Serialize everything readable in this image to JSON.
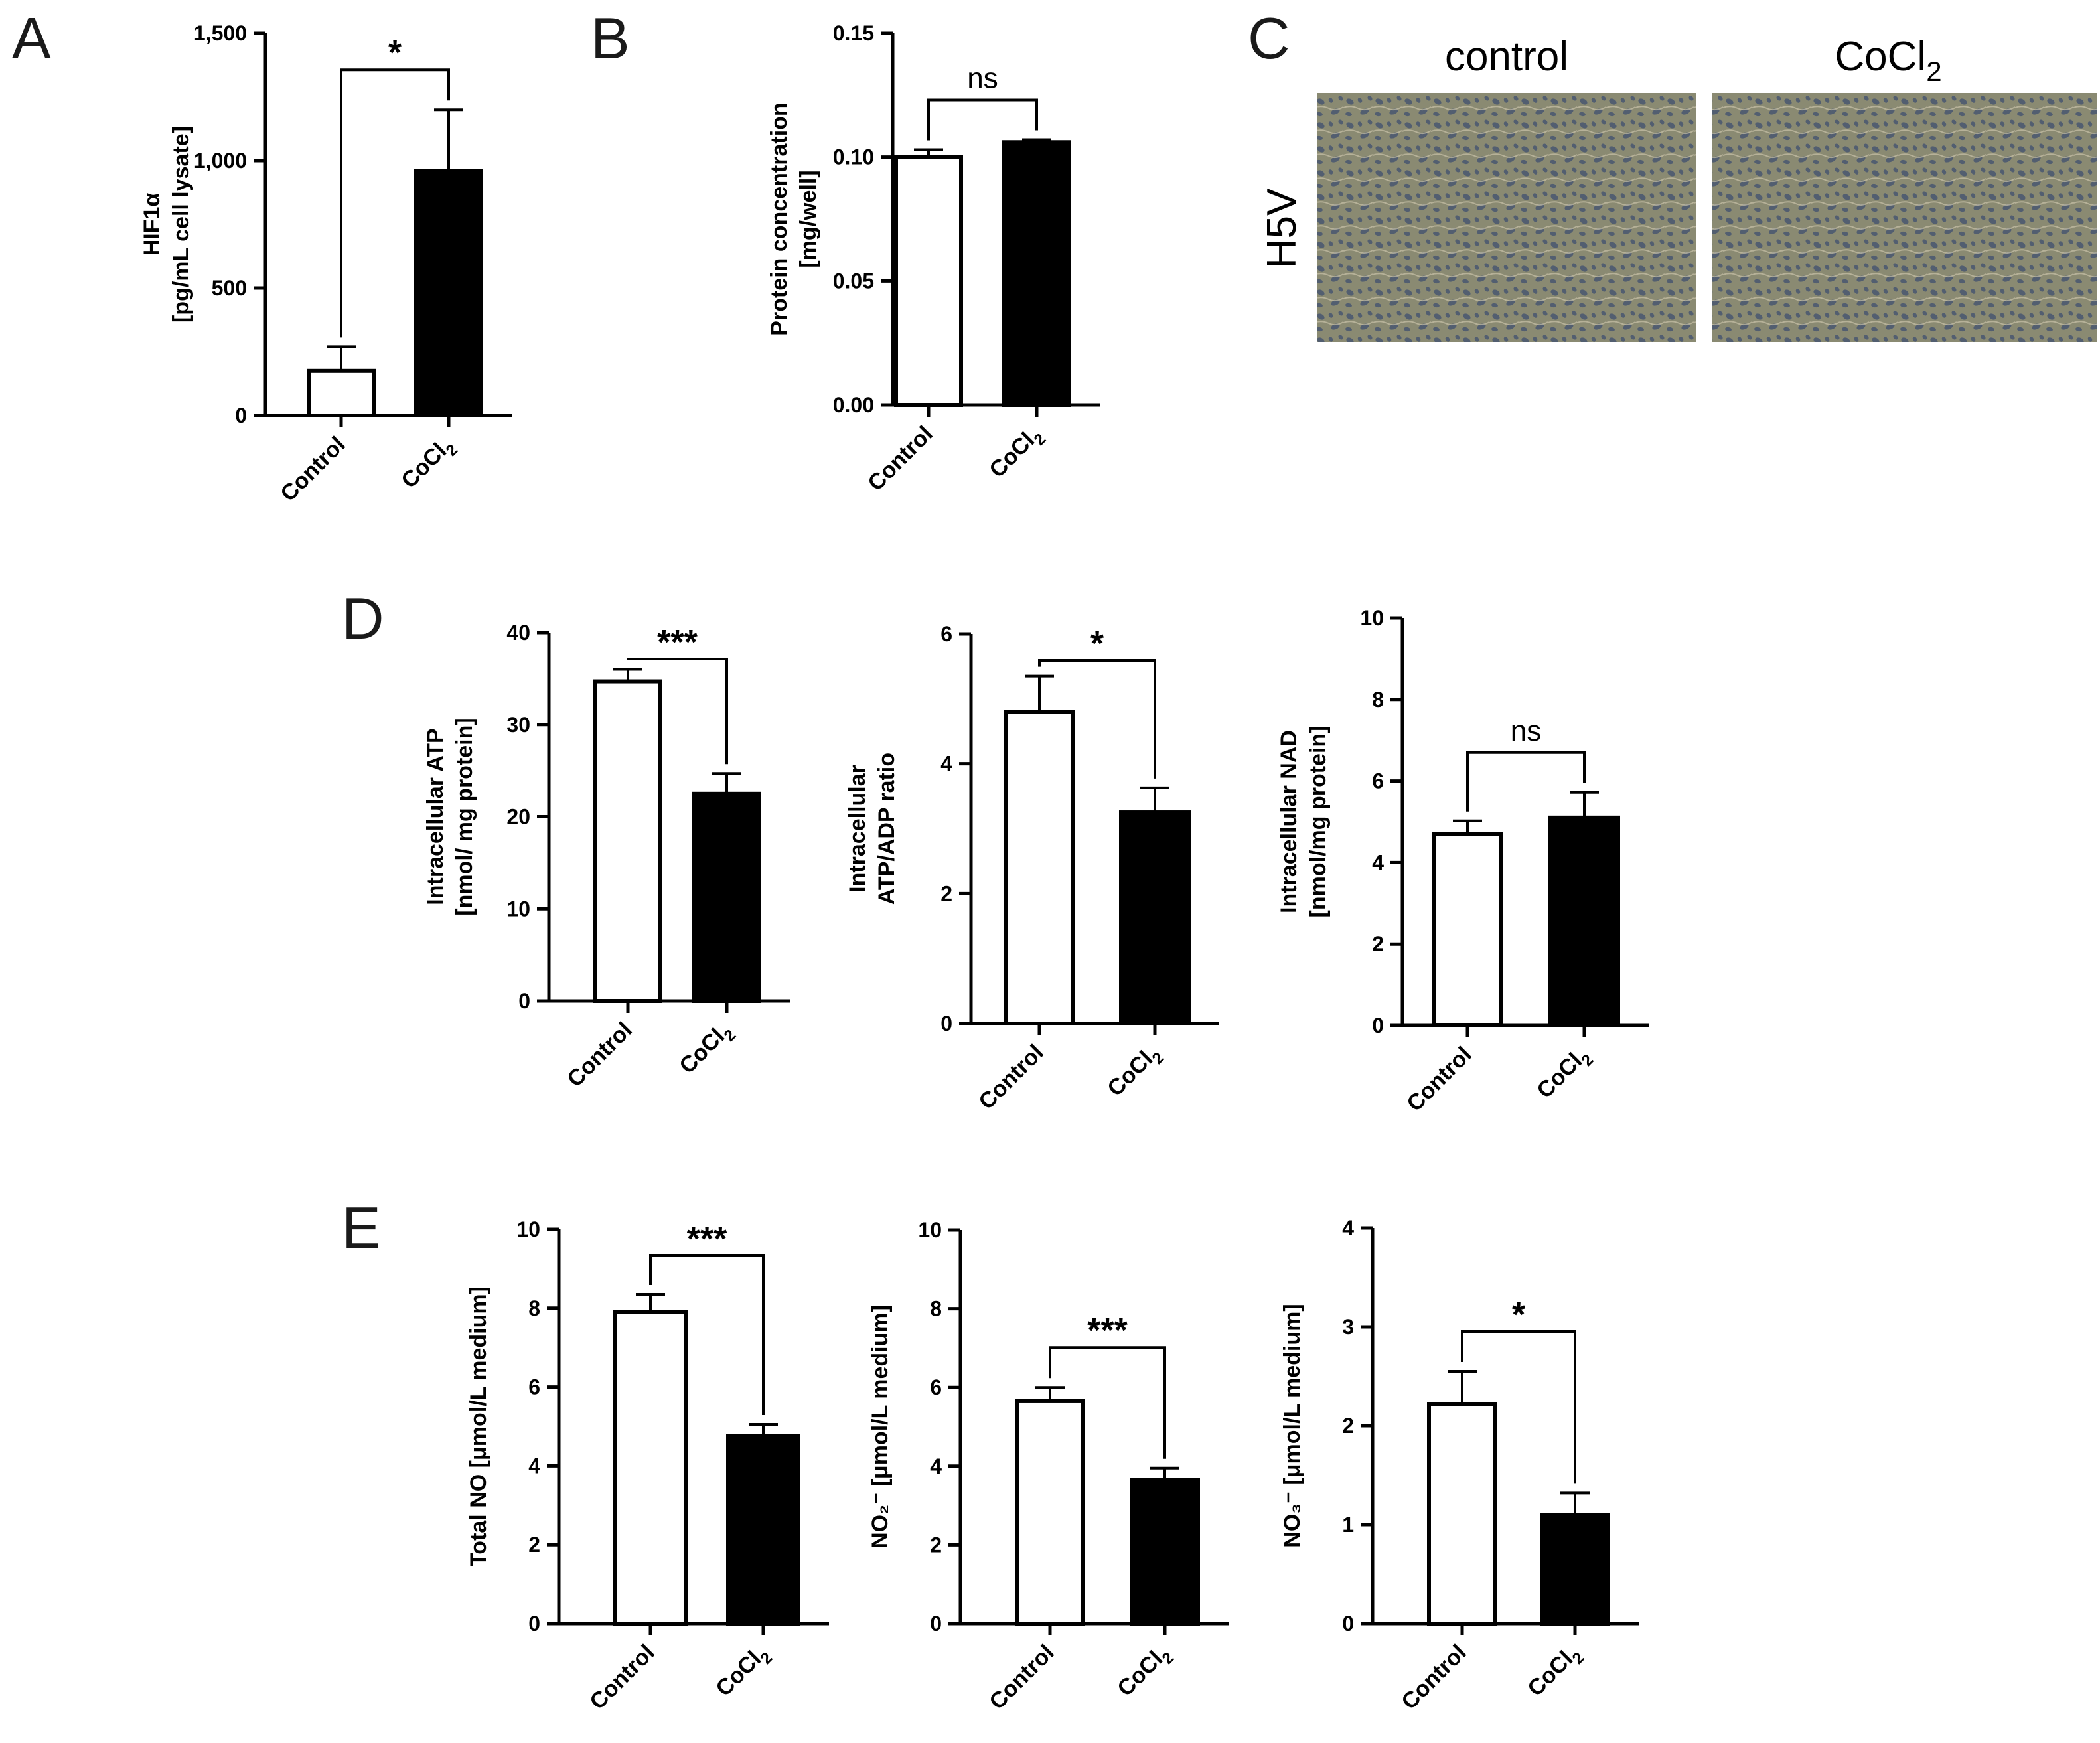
{
  "panel_letters": [
    "A",
    "B",
    "C",
    "D",
    "E"
  ],
  "micrograph": {
    "panel": "C",
    "row_label": "H5V",
    "titles": [
      {
        "text": "control"
      },
      {
        "text": "CoCl",
        "sub": "2"
      }
    ],
    "colors": {
      "base": "#8a8a72",
      "cell": "#3e4e6e",
      "light": "#c9c2a8"
    }
  },
  "colors": {
    "control_fill": "#ffffff",
    "treated_fill": "#000000",
    "stroke": "#000000"
  },
  "chart_data": [
    {
      "id": "A",
      "type": "bar",
      "categories": [
        {
          "text": "Control"
        },
        {
          "text": "CoCl",
          "sub": "2"
        }
      ],
      "values": [
        175,
        960
      ],
      "errors": [
        95,
        240
      ],
      "ylabel": [
        "HIF1α",
        "[pg/mL cell lysate]"
      ],
      "ylim": [
        0,
        1500
      ],
      "yticks": [
        0,
        500,
        1000,
        1500
      ],
      "yticklabels": [
        "0",
        "500",
        "1,000",
        "1,500"
      ],
      "significance": "*",
      "grid": false
    },
    {
      "id": "B",
      "type": "bar",
      "categories": [
        {
          "text": "Control"
        },
        {
          "text": "CoCl",
          "sub": "2"
        }
      ],
      "values": [
        0.1,
        0.106
      ],
      "errors": [
        0.003,
        0.001
      ],
      "ylabel": [
        "Protein concentration",
        "[mg/well]"
      ],
      "ylim": [
        0,
        0.15
      ],
      "yticks": [
        0,
        0.05,
        0.1,
        0.15
      ],
      "yticklabels": [
        "0.00",
        "0.05",
        "0.10",
        "0.15"
      ],
      "significance": "ns",
      "grid": false
    },
    {
      "id": "D1",
      "type": "bar",
      "categories": [
        {
          "text": "Control"
        },
        {
          "text": "CoCl",
          "sub": "2"
        }
      ],
      "values": [
        34.7,
        22.5
      ],
      "errors": [
        1.3,
        2.2
      ],
      "ylabel": [
        "Intracellular ATP",
        "[nmol/ mg protein]"
      ],
      "ylim": [
        0,
        40
      ],
      "yticks": [
        0,
        10,
        20,
        30,
        40
      ],
      "yticklabels": [
        "0",
        "10",
        "20",
        "30",
        "40"
      ],
      "significance": "***",
      "grid": false
    },
    {
      "id": "D2",
      "type": "bar",
      "categories": [
        {
          "text": "Control"
        },
        {
          "text": "CoCl",
          "sub": "2"
        }
      ],
      "values": [
        4.8,
        3.25
      ],
      "errors": [
        0.55,
        0.38
      ],
      "ylabel": [
        "Intracellular",
        "ATP/ADP ratio"
      ],
      "ylim": [
        0,
        6
      ],
      "yticks": [
        0,
        2,
        4,
        6
      ],
      "yticklabels": [
        "0",
        "2",
        "4",
        "6"
      ],
      "significance": "*",
      "grid": false
    },
    {
      "id": "D3",
      "type": "bar",
      "categories": [
        {
          "text": "Control"
        },
        {
          "text": "CoCl",
          "sub": "2"
        }
      ],
      "values": [
        4.7,
        5.1
      ],
      "errors": [
        0.32,
        0.62
      ],
      "ylabel": [
        "Intracellular NAD",
        "[nmol/mg protein]"
      ],
      "ylim": [
        0,
        10
      ],
      "yticks": [
        0,
        2,
        4,
        6,
        8,
        10
      ],
      "yticklabels": [
        "0",
        "2",
        "4",
        "6",
        "8",
        "10"
      ],
      "significance": "ns",
      "grid": false
    },
    {
      "id": "E1",
      "type": "bar",
      "categories": [
        {
          "text": "Control"
        },
        {
          "text": "CoCl",
          "sub": "2"
        }
      ],
      "values": [
        7.9,
        4.75
      ],
      "errors": [
        0.45,
        0.3
      ],
      "ylabel": [
        "Total NO [μmol/L medium]"
      ],
      "ylim": [
        0,
        10
      ],
      "yticks": [
        0,
        2,
        4,
        6,
        8,
        10
      ],
      "yticklabels": [
        "0",
        "2",
        "4",
        "6",
        "8",
        "10"
      ],
      "significance": "***",
      "grid": false
    },
    {
      "id": "E2",
      "type": "bar",
      "categories": [
        {
          "text": "Control"
        },
        {
          "text": "CoCl",
          "sub": "2"
        }
      ],
      "values": [
        5.65,
        3.65
      ],
      "errors": [
        0.35,
        0.3
      ],
      "ylabel": [
        "NO₂⁻ [μmol/L medium]"
      ],
      "ylim": [
        0,
        10
      ],
      "yticks": [
        0,
        2,
        4,
        6,
        8,
        10
      ],
      "yticklabels": [
        "0",
        "2",
        "4",
        "6",
        "8",
        "10"
      ],
      "significance": "***",
      "grid": false
    },
    {
      "id": "E3",
      "type": "bar",
      "categories": [
        {
          "text": "Control"
        },
        {
          "text": "CoCl",
          "sub": "2"
        }
      ],
      "values": [
        2.22,
        1.1
      ],
      "errors": [
        0.33,
        0.22
      ],
      "ylabel": [
        "NO₃⁻ [μmol/L medium]"
      ],
      "ylim": [
        0,
        4
      ],
      "yticks": [
        0,
        1,
        2,
        3,
        4
      ],
      "yticklabels": [
        "0",
        "1",
        "2",
        "3",
        "4"
      ],
      "significance": "*",
      "grid": false
    }
  ]
}
